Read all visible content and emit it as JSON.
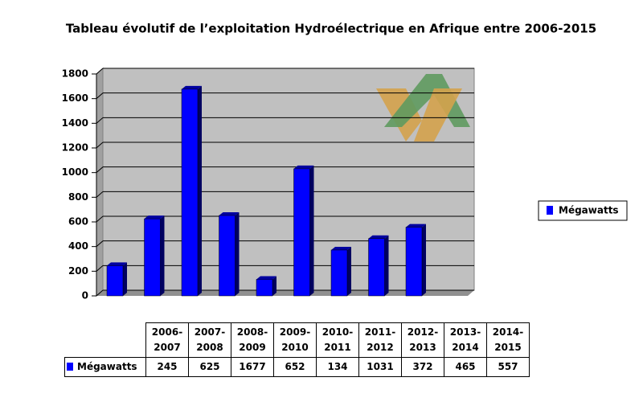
{
  "chart_data": {
    "type": "bar",
    "title": "Tableau évolutif de l’exploitation Hydroélectrique en Afrique entre 2006-2015",
    "categories": [
      "2006-2007",
      "2007-2008",
      "2008-2009",
      "2009-2010",
      "2010-2011",
      "2011-2012",
      "2012-2013",
      "2013-2014",
      "2014-2015"
    ],
    "series": [
      {
        "name": "Mégawatts",
        "color": "#0000ff",
        "values": [
          245,
          625,
          1677,
          652,
          134,
          1031,
          372,
          465,
          557
        ]
      }
    ],
    "ylim": [
      0,
      1800
    ],
    "yticks": [
      0,
      200,
      400,
      600,
      800,
      1000,
      1200,
      1400,
      1600,
      1800
    ],
    "grid": true,
    "legend": "right"
  }
}
